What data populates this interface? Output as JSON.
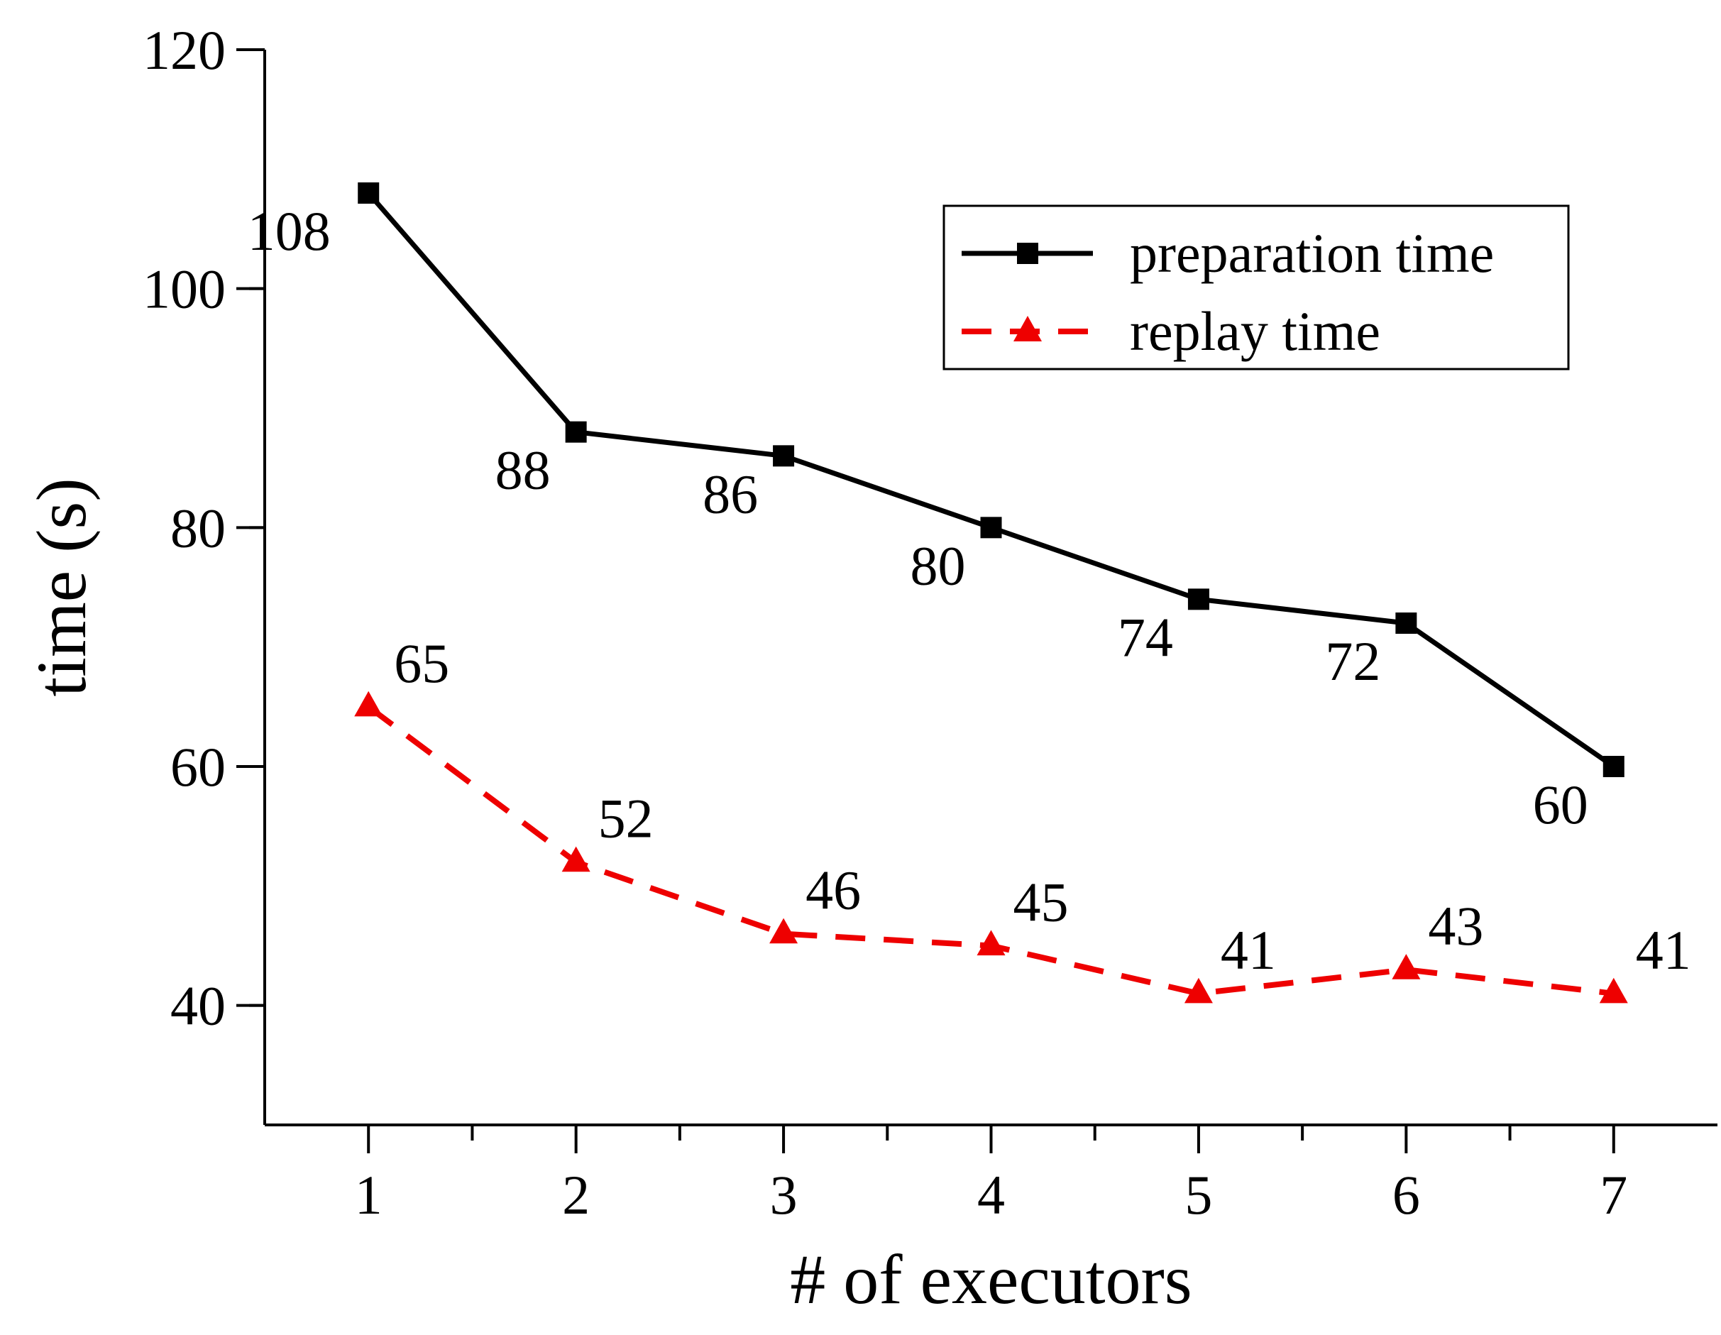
{
  "chart_data": {
    "type": "line",
    "xlabel": "# of executors",
    "ylabel": "time (s)",
    "x": [
      1,
      2,
      3,
      4,
      5,
      6,
      7
    ],
    "xlim": [
      0.5,
      7.5
    ],
    "ylim": [
      30,
      120
    ],
    "yticks": [
      40,
      60,
      80,
      100,
      120
    ],
    "grid": false,
    "legend_position": "top-right",
    "series": [
      {
        "name": "preparation time",
        "values": [
          108,
          88,
          86,
          80,
          74,
          72,
          60
        ],
        "color": "#000000",
        "line_style": "solid",
        "marker": "square"
      },
      {
        "name": "replay time",
        "values": [
          65,
          52,
          46,
          45,
          41,
          43,
          41
        ],
        "color": "#ee0000",
        "line_style": "dashed",
        "marker": "triangle"
      }
    ]
  }
}
